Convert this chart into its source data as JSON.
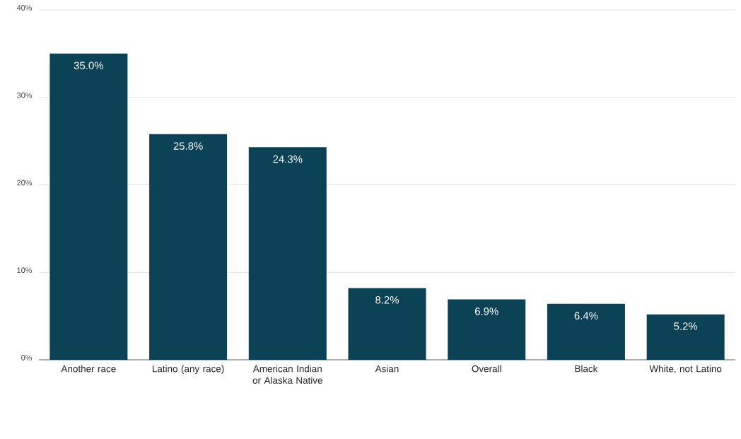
{
  "chart_data": {
    "type": "bar",
    "categories": [
      "Another race",
      "Latino (any race)",
      "American Indian or Alaska Native",
      "Asian",
      "Overall",
      "Black",
      "White, not Latino"
    ],
    "values": [
      35.0,
      25.8,
      24.3,
      8.2,
      6.9,
      6.4,
      5.2
    ],
    "value_labels": [
      "35.0%",
      "25.8%",
      "24.3%",
      "8.2%",
      "6.9%",
      "6.4%",
      "5.2%"
    ],
    "color": "#0b4256",
    "ylim": [
      0,
      40
    ],
    "yticks": [
      {
        "value": 0,
        "label": "0%"
      },
      {
        "value": 10,
        "label": "10%"
      },
      {
        "value": 20,
        "label": "20%"
      },
      {
        "value": 30,
        "label": "30%"
      },
      {
        "value": 40,
        "label": "40%"
      }
    ],
    "grid": "y"
  }
}
